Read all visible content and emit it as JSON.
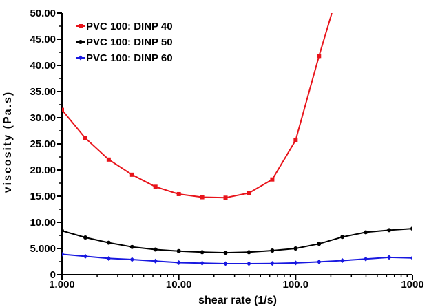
{
  "chart_data": {
    "type": "line",
    "xlabel": "shear rate (1/s)",
    "ylabel": "viscosity (Pa.s)",
    "x_scale": "log",
    "xlim": [
      1,
      1000
    ],
    "ylim": [
      0,
      50
    ],
    "x_ticks": [
      1,
      10,
      100,
      1000
    ],
    "x_tick_labels": [
      "1.000",
      "10.00",
      "100.0",
      "1000"
    ],
    "y_ticks": [
      0,
      5,
      10,
      15,
      20,
      25,
      30,
      35,
      40,
      45,
      50
    ],
    "y_tick_labels": [
      "0",
      "5.000",
      "10.00",
      "15.00",
      "20.00",
      "25.00",
      "30.00",
      "35.00",
      "40.00",
      "45.00",
      "50.00"
    ],
    "grid": false,
    "legend_position": "top-left",
    "series": [
      {
        "name": "PVC 100: DINP 40",
        "color": "#e8141b",
        "marker": "square",
        "points": [
          [
            1.0,
            31.5
          ],
          [
            1.585,
            26.1
          ],
          [
            2.512,
            22.0
          ],
          [
            3.981,
            19.1
          ],
          [
            6.31,
            16.8
          ],
          [
            10.0,
            15.4
          ],
          [
            15.85,
            14.8
          ],
          [
            25.12,
            14.7
          ],
          [
            39.81,
            15.6
          ],
          [
            63.1,
            18.2
          ],
          [
            100.0,
            25.7
          ],
          [
            158.5,
            41.8
          ],
          [
            204.0,
            50.0
          ]
        ]
      },
      {
        "name": "PVC 100: DINP 50",
        "color": "#000000",
        "marker": "circle",
        "points": [
          [
            1.0,
            8.4
          ],
          [
            1.585,
            7.1
          ],
          [
            2.512,
            6.1
          ],
          [
            3.981,
            5.3
          ],
          [
            6.31,
            4.8
          ],
          [
            10.0,
            4.5
          ],
          [
            15.85,
            4.3
          ],
          [
            25.12,
            4.2
          ],
          [
            39.81,
            4.3
          ],
          [
            63.1,
            4.6
          ],
          [
            100.0,
            5.0
          ],
          [
            158.5,
            5.9
          ],
          [
            251.2,
            7.2
          ],
          [
            398.1,
            8.1
          ],
          [
            631.0,
            8.5
          ],
          [
            1000.0,
            8.8
          ]
        ]
      },
      {
        "name": "PVC 100: DINP 60",
        "color": "#1818e0",
        "marker": "diamond",
        "points": [
          [
            1.0,
            3.9
          ],
          [
            1.585,
            3.5
          ],
          [
            2.512,
            3.1
          ],
          [
            3.981,
            2.9
          ],
          [
            6.31,
            2.6
          ],
          [
            10.0,
            2.3
          ],
          [
            15.85,
            2.2
          ],
          [
            25.12,
            2.1
          ],
          [
            39.81,
            2.1
          ],
          [
            63.1,
            2.15
          ],
          [
            100.0,
            2.25
          ],
          [
            158.5,
            2.45
          ],
          [
            251.2,
            2.7
          ],
          [
            398.1,
            3.0
          ],
          [
            631.0,
            3.3
          ],
          [
            1000.0,
            3.2
          ]
        ]
      }
    ]
  }
}
